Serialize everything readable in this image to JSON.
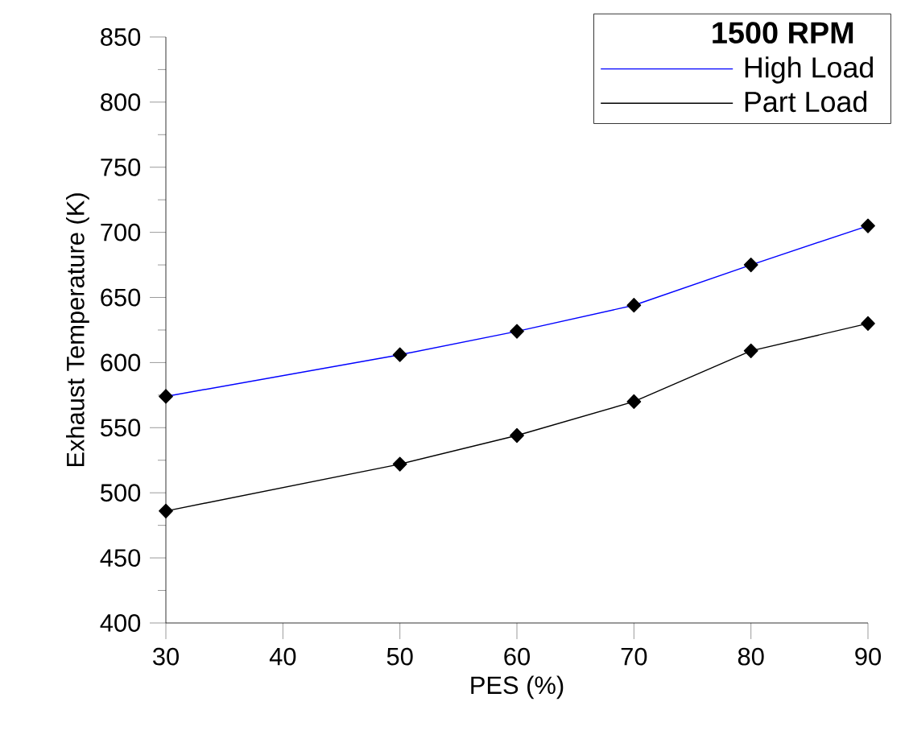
{
  "chart_data": {
    "type": "line",
    "xlabel": "PES (%)",
    "ylabel": "Exhaust Temperature (K)",
    "legend_title": "1500 RPM",
    "x": [
      30,
      50,
      60,
      70,
      80,
      90
    ],
    "series": [
      {
        "name": "High Load",
        "color": "#0000ff",
        "values": [
          574,
          606,
          624,
          644,
          675,
          705
        ]
      },
      {
        "name": "Part Load",
        "color": "#000000",
        "values": [
          486,
          522,
          544,
          570,
          609,
          630
        ]
      }
    ],
    "xlim": [
      30,
      90
    ],
    "xticks": [
      30,
      40,
      50,
      60,
      70,
      80,
      90
    ],
    "ylim": [
      400,
      850
    ],
    "yticks": [
      400,
      450,
      500,
      550,
      600,
      650,
      700,
      750,
      800,
      850
    ],
    "grid": false,
    "legend": "top right",
    "marker": "diamond",
    "line_style": "solid"
  }
}
